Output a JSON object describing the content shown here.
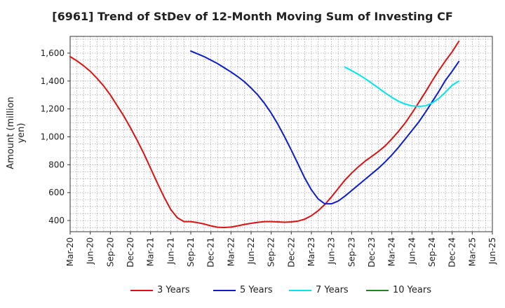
{
  "chart_data": {
    "type": "line",
    "title": "[6961]  Trend of StDev of 12-Month Moving Sum of Investing CF",
    "ylabel": "Amount (million yen)",
    "xlabel": "",
    "ylim": [
      320,
      1720
    ],
    "yticks": [
      400,
      600,
      800,
      1000,
      1200,
      1400,
      1600
    ],
    "ytick_labels": [
      "400",
      "600",
      "800",
      "1,000",
      "1,200",
      "1,400",
      "1,600"
    ],
    "xtick_labels": [
      "Mar-20",
      "Jun-20",
      "Sep-20",
      "Dec-20",
      "Mar-21",
      "Jun-21",
      "Sep-21",
      "Dec-21",
      "Mar-22",
      "Jun-22",
      "Sep-22",
      "Dec-22",
      "Mar-23",
      "Jun-23",
      "Sep-23",
      "Dec-23",
      "Mar-24",
      "Jun-24",
      "Sep-24",
      "Dec-24",
      "Mar-25",
      "Jun-25"
    ],
    "x_start": "Mar-20",
    "grid": true,
    "legend_position": "bottom",
    "series": [
      {
        "name": "3 Years",
        "color": "#dd1111",
        "values": [
          1575,
          1545,
          1510,
          1470,
          1420,
          1365,
          1300,
          1225,
          1150,
          1065,
          975,
          880,
          775,
          670,
          570,
          480,
          420,
          392,
          392,
          385,
          375,
          362,
          352,
          350,
          353,
          362,
          372,
          380,
          387,
          392,
          392,
          390,
          388,
          390,
          396,
          410,
          435,
          470,
          515,
          570,
          630,
          690,
          740,
          785,
          825,
          860,
          895,
          935,
          985,
          1040,
          1100,
          1170,
          1245,
          1320,
          1400,
          1475,
          1545,
          1610,
          1685
        ]
      },
      {
        "name": "5 Years",
        "color": "#0a1ecc",
        "values": [
          null,
          null,
          null,
          null,
          null,
          null,
          null,
          null,
          null,
          null,
          null,
          null,
          null,
          null,
          null,
          null,
          null,
          null,
          1615,
          1595,
          1575,
          1550,
          1525,
          1495,
          1465,
          1432,
          1395,
          1350,
          1300,
          1240,
          1170,
          1090,
          1000,
          905,
          805,
          705,
          620,
          555,
          520,
          520,
          540,
          575,
          615,
          655,
          695,
          735,
          775,
          820,
          870,
          925,
          985,
          1045,
          1105,
          1175,
          1250,
          1325,
          1405,
          1470,
          1540
        ]
      },
      {
        "name": "7 Years",
        "color": "#00e5ee",
        "values": [
          null,
          null,
          null,
          null,
          null,
          null,
          null,
          null,
          null,
          null,
          null,
          null,
          null,
          null,
          null,
          null,
          null,
          null,
          null,
          null,
          null,
          null,
          null,
          null,
          null,
          null,
          null,
          null,
          null,
          null,
          null,
          null,
          null,
          null,
          null,
          null,
          null,
          null,
          null,
          null,
          null,
          1500,
          1475,
          1448,
          1418,
          1385,
          1350,
          1315,
          1283,
          1255,
          1235,
          1222,
          1218,
          1222,
          1242,
          1275,
          1320,
          1370,
          1400
        ]
      },
      {
        "name": "10 Years",
        "color": "#1a8a1a",
        "values": []
      }
    ]
  }
}
